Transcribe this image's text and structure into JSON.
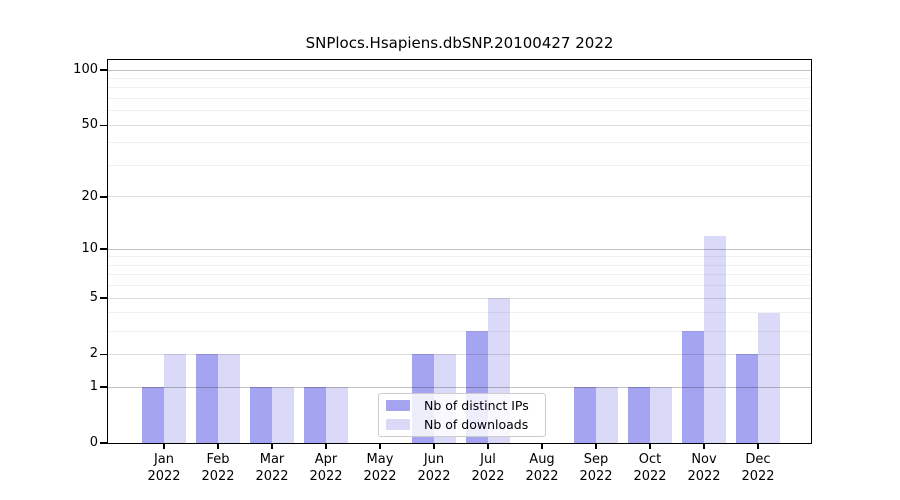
{
  "chart_data": {
    "type": "bar",
    "title": "SNPlocs.Hsapiens.dbSNP.20100427 2022",
    "year": "2022",
    "categories": [
      "Jan",
      "Feb",
      "Mar",
      "Apr",
      "May",
      "Jun",
      "Jul",
      "Aug",
      "Sep",
      "Oct",
      "Nov",
      "Dec"
    ],
    "series": [
      {
        "name": "Nb of distinct IPs",
        "key": "distinct-ips",
        "color": "#a4a4f0",
        "values": [
          1,
          2,
          1,
          1,
          0,
          2,
          3,
          0,
          1,
          1,
          3,
          2
        ]
      },
      {
        "name": "Nb of downloads",
        "key": "downloads",
        "color": "#dadaf8",
        "values": [
          2,
          2,
          1,
          1,
          0,
          2,
          5,
          0,
          1,
          1,
          12,
          4
        ]
      }
    ],
    "y_scale": "log10(1+x)",
    "ylim": [
      0,
      110
    ],
    "y_ticks": [
      0,
      1,
      2,
      5,
      10,
      20,
      50,
      100
    ],
    "y_decade_ticks": [
      1,
      10,
      100
    ],
    "y_minor_ticks": [
      3,
      4,
      6,
      7,
      8,
      9,
      30,
      40,
      60,
      70,
      80,
      90
    ],
    "grid": "horizontal",
    "legend_position": "lower center"
  }
}
